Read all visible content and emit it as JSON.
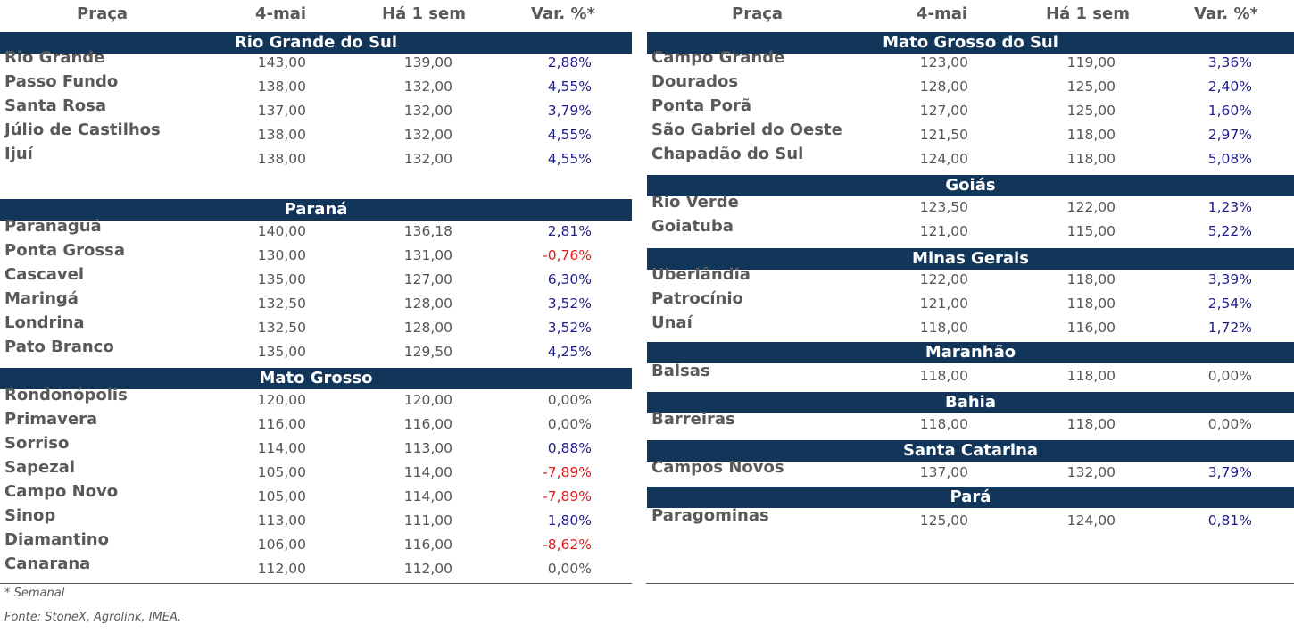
{
  "headers": {
    "place": "Praça",
    "current": "4-mai",
    "week_ago": "Há 1 sem",
    "variation": "Var. %*"
  },
  "left_sections": [
    {
      "region": "Rio Grande do Sul",
      "rows": [
        {
          "place": "Rio Grande",
          "current": "143,00",
          "week_ago": "139,00",
          "var": "2,88%"
        },
        {
          "place": "Passo Fundo",
          "current": "138,00",
          "week_ago": "132,00",
          "var": "4,55%"
        },
        {
          "place": "Santa Rosa",
          "current": "137,00",
          "week_ago": "132,00",
          "var": "3,79%"
        },
        {
          "place": "Júlio de Castilhos",
          "current": "138,00",
          "week_ago": "132,00",
          "var": "4,55%"
        },
        {
          "place": "Ijuí",
          "current": "138,00",
          "week_ago": "132,00",
          "var": "4,55%"
        }
      ]
    },
    {
      "region": "Paraná",
      "rows": [
        {
          "place": "Paranaguá",
          "current": "140,00",
          "week_ago": "136,18",
          "var": "2,81%"
        },
        {
          "place": "Ponta Grossa",
          "current": "130,00",
          "week_ago": "131,00",
          "var": "-0,76%"
        },
        {
          "place": "Cascavel",
          "current": "135,00",
          "week_ago": "127,00",
          "var": "6,30%"
        },
        {
          "place": "Maringá",
          "current": "132,50",
          "week_ago": "128,00",
          "var": "3,52%"
        },
        {
          "place": "Londrina",
          "current": "132,50",
          "week_ago": "128,00",
          "var": "3,52%"
        },
        {
          "place": "Pato Branco",
          "current": "135,00",
          "week_ago": "129,50",
          "var": "4,25%"
        }
      ]
    },
    {
      "region": "Mato Grosso",
      "rows": [
        {
          "place": "Rondonópolis",
          "current": "120,00",
          "week_ago": "120,00",
          "var": "0,00%"
        },
        {
          "place": "Primavera",
          "current": "116,00",
          "week_ago": "116,00",
          "var": "0,00%"
        },
        {
          "place": "Sorriso",
          "current": "114,00",
          "week_ago": "113,00",
          "var": "0,88%"
        },
        {
          "place": "Sapezal",
          "current": "105,00",
          "week_ago": "114,00",
          "var": "-7,89%"
        },
        {
          "place": "Campo Novo",
          "current": "105,00",
          "week_ago": "114,00",
          "var": "-7,89%"
        },
        {
          "place": "Sinop",
          "current": "113,00",
          "week_ago": "111,00",
          "var": "1,80%"
        },
        {
          "place": "Diamantino",
          "current": "106,00",
          "week_ago": "116,00",
          "var": "-8,62%"
        },
        {
          "place": "Canarana",
          "current": "112,00",
          "week_ago": "112,00",
          "var": "0,00%"
        }
      ]
    }
  ],
  "right_sections": [
    {
      "region": "Mato Grosso do Sul",
      "rows": [
        {
          "place": "Campo Grande",
          "current": "123,00",
          "week_ago": "119,00",
          "var": "3,36%"
        },
        {
          "place": "Dourados",
          "current": "128,00",
          "week_ago": "125,00",
          "var": "2,40%"
        },
        {
          "place": "Ponta Porã",
          "current": "127,00",
          "week_ago": "125,00",
          "var": "1,60%"
        },
        {
          "place": "São Gabriel do Oeste",
          "current": "121,50",
          "week_ago": "118,00",
          "var": "2,97%"
        },
        {
          "place": "Chapadão do Sul",
          "current": "124,00",
          "week_ago": "118,00",
          "var": "5,08%"
        }
      ]
    },
    {
      "region": "Goiás",
      "rows": [
        {
          "place": "Rio Verde",
          "current": "123,50",
          "week_ago": "122,00",
          "var": "1,23%"
        },
        {
          "place": "Goiatuba",
          "current": "121,00",
          "week_ago": "115,00",
          "var": "5,22%"
        }
      ]
    },
    {
      "region": "Minas Gerais",
      "rows": [
        {
          "place": "Uberlândia",
          "current": "122,00",
          "week_ago": "118,00",
          "var": "3,39%"
        },
        {
          "place": "Patrocínio",
          "current": "121,00",
          "week_ago": "118,00",
          "var": "2,54%"
        },
        {
          "place": "Unaí",
          "current": "118,00",
          "week_ago": "116,00",
          "var": "1,72%"
        }
      ]
    },
    {
      "region": "Maranhão",
      "rows": [
        {
          "place": "Balsas",
          "current": "118,00",
          "week_ago": "118,00",
          "var": "0,00%"
        }
      ]
    },
    {
      "region": "Bahia",
      "rows": [
        {
          "place": "Barreiras",
          "current": "118,00",
          "week_ago": "118,00",
          "var": "0,00%"
        }
      ]
    },
    {
      "region": "Santa Catarina",
      "rows": [
        {
          "place": "Campos Novos",
          "current": "137,00",
          "week_ago": "132,00",
          "var": "3,79%"
        }
      ]
    },
    {
      "region": "Pará",
      "rows": [
        {
          "place": "Paragominas",
          "current": "125,00",
          "week_ago": "124,00",
          "var": "0,81%"
        }
      ]
    }
  ],
  "footer": {
    "note": "* Semanal",
    "source": "Fonte: StoneX, Agrolink, IMEA."
  },
  "colors": {
    "band": "#11365a",
    "positive": "#1f1f8a",
    "negative": "#e01b1b",
    "neutral": "#555555"
  }
}
